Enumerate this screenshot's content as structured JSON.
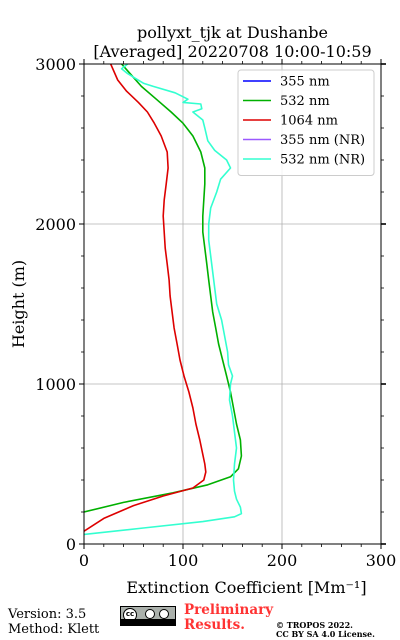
{
  "chart_data": {
    "type": "line",
    "title": [
      "pollyxt_tjk at Dushanbe",
      "[Averaged] 20220708 10:00-10:59"
    ],
    "xlabel": "Extinction Coefficient [Mm⁻¹]",
    "ylabel": "Height (m)",
    "xlim": [
      0,
      300
    ],
    "ylim": [
      0,
      3000
    ],
    "xticks": [
      0,
      100,
      200,
      300
    ],
    "yticks": [
      0,
      1000,
      2000,
      3000
    ],
    "x_tick_labels": [
      "0",
      "100",
      "200",
      "300"
    ],
    "y_tick_labels": [
      "0",
      "1000",
      "2000",
      "3000"
    ],
    "grid": true,
    "legend_position": "top-right",
    "series": [
      {
        "name": "355 nm",
        "color": "#0000ff",
        "points": []
      },
      {
        "name": "532 nm",
        "color": "#00b000",
        "points": [
          [
            0,
            200
          ],
          [
            40,
            260
          ],
          [
            90,
            320
          ],
          [
            125,
            370
          ],
          [
            148,
            420
          ],
          [
            156,
            470
          ],
          [
            159,
            550
          ],
          [
            158,
            650
          ],
          [
            154,
            750
          ],
          [
            151,
            850
          ],
          [
            148,
            950
          ],
          [
            144,
            1050
          ],
          [
            140,
            1150
          ],
          [
            136,
            1250
          ],
          [
            133,
            1350
          ],
          [
            130,
            1450
          ],
          [
            128,
            1550
          ],
          [
            126,
            1650
          ],
          [
            124,
            1750
          ],
          [
            122,
            1850
          ],
          [
            120,
            1950
          ],
          [
            120,
            2050
          ],
          [
            121,
            2150
          ],
          [
            122,
            2250
          ],
          [
            122,
            2350
          ],
          [
            118,
            2450
          ],
          [
            110,
            2550
          ],
          [
            100,
            2630
          ],
          [
            88,
            2700
          ],
          [
            73,
            2780
          ],
          [
            58,
            2860
          ],
          [
            48,
            2930
          ],
          [
            38,
            3000
          ]
        ]
      },
      {
        "name": "1064 nm",
        "color": "#dd0000",
        "points": [
          [
            0,
            80
          ],
          [
            20,
            160
          ],
          [
            50,
            240
          ],
          [
            80,
            300
          ],
          [
            110,
            350
          ],
          [
            121,
            400
          ],
          [
            123,
            450
          ],
          [
            122,
            500
          ],
          [
            120,
            560
          ],
          [
            117,
            650
          ],
          [
            113,
            750
          ],
          [
            110,
            850
          ],
          [
            106,
            950
          ],
          [
            101,
            1050
          ],
          [
            97,
            1150
          ],
          [
            94,
            1250
          ],
          [
            91,
            1350
          ],
          [
            89,
            1450
          ],
          [
            87,
            1550
          ],
          [
            86,
            1650
          ],
          [
            84,
            1750
          ],
          [
            82,
            1850
          ],
          [
            81,
            1950
          ],
          [
            80,
            2050
          ],
          [
            81,
            2150
          ],
          [
            83,
            2250
          ],
          [
            85,
            2350
          ],
          [
            84,
            2450
          ],
          [
            78,
            2550
          ],
          [
            71,
            2630
          ],
          [
            64,
            2700
          ],
          [
            55,
            2760
          ],
          [
            43,
            2830
          ],
          [
            34,
            2900
          ],
          [
            27,
            3000
          ]
        ]
      },
      {
        "name": "355 nm (NR)",
        "color": "#9b59ff",
        "points": []
      },
      {
        "name": "532 nm (NR)",
        "color": "#33ffd0",
        "points": [
          [
            0,
            60
          ],
          [
            60,
            100
          ],
          [
            120,
            140
          ],
          [
            152,
            170
          ],
          [
            159,
            190
          ],
          [
            158,
            230
          ],
          [
            154,
            280
          ],
          [
            152,
            330
          ],
          [
            151,
            400
          ],
          [
            152,
            500
          ],
          [
            154,
            600
          ],
          [
            152,
            700
          ],
          [
            150,
            800
          ],
          [
            147,
            900
          ],
          [
            148,
            1000
          ],
          [
            150,
            1050
          ],
          [
            146,
            1120
          ],
          [
            145,
            1200
          ],
          [
            142,
            1300
          ],
          [
            139,
            1400
          ],
          [
            134,
            1500
          ],
          [
            132,
            1600
          ],
          [
            130,
            1700
          ],
          [
            128,
            1800
          ],
          [
            126,
            1900
          ],
          [
            126,
            2000
          ],
          [
            128,
            2100
          ],
          [
            134,
            2200
          ],
          [
            138,
            2280
          ],
          [
            148,
            2350
          ],
          [
            144,
            2400
          ],
          [
            132,
            2460
          ],
          [
            125,
            2520
          ],
          [
            122,
            2600
          ],
          [
            120,
            2650
          ],
          [
            110,
            2700
          ],
          [
            119,
            2720
          ],
          [
            118,
            2750
          ],
          [
            100,
            2760
          ],
          [
            105,
            2780
          ],
          [
            92,
            2820
          ],
          [
            70,
            2860
          ],
          [
            60,
            2880
          ],
          [
            52,
            2910
          ],
          [
            44,
            2940
          ],
          [
            38,
            2970
          ],
          [
            44,
            3000
          ]
        ]
      }
    ]
  },
  "footer": {
    "version": "Version: 3.5",
    "method": "Method: Klett",
    "preliminary_line1": "Preliminary",
    "preliminary_line2": "Results.",
    "copyright_line1": "© TROPOS 2022.",
    "copyright_line2": "CC BY SA 4.0 License."
  }
}
